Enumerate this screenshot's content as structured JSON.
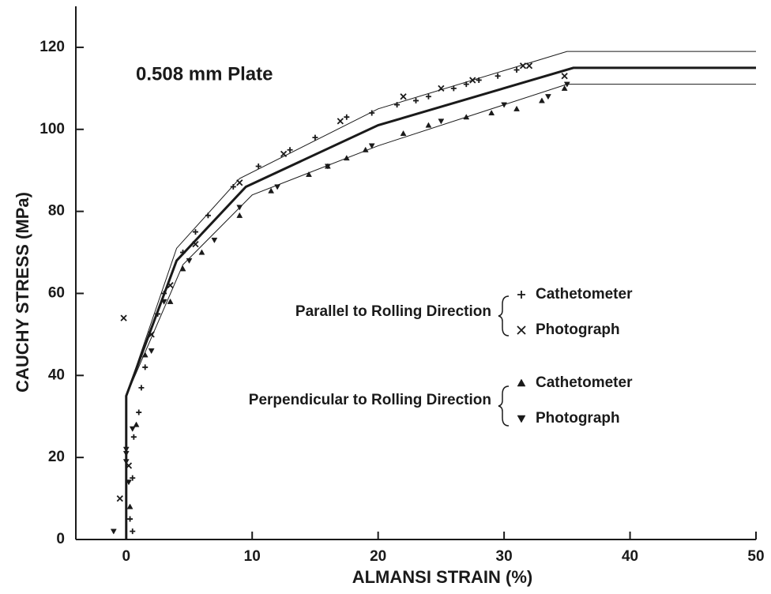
{
  "chart_data": {
    "type": "scatter",
    "title": "0.508 mm Plate",
    "xlabel": "ALMANSI STRAIN (%)",
    "ylabel": "CAUCHY STRESS (MPa)",
    "xlim": [
      -4,
      50
    ],
    "ylim": [
      0,
      130
    ],
    "xticks": [
      0,
      10,
      20,
      30,
      40,
      50
    ],
    "yticks": [
      0,
      20,
      40,
      60,
      80,
      100,
      120
    ],
    "color": "#1a1a1a",
    "lines": [
      {
        "line_width": 3,
        "x": [
          0,
          0,
          4,
          9.5,
          20,
          35.5,
          50
        ],
        "values": [
          0,
          35,
          68,
          86,
          101,
          115,
          115
        ]
      },
      {
        "line_width": 1,
        "x": [
          0,
          4,
          9,
          20,
          35,
          50
        ],
        "values": [
          35,
          71,
          88,
          105,
          119,
          119
        ]
      },
      {
        "line_width": 1,
        "x": [
          0,
          4.5,
          10,
          20,
          35,
          50
        ],
        "values": [
          35,
          67,
          84,
          96,
          111,
          111
        ]
      }
    ],
    "legend_groups": [
      "Parallel to Rolling Direction",
      "Perpendicular to Rolling Direction"
    ],
    "series": [
      {
        "name": "Cathetometer",
        "group": 0,
        "marker": "plus",
        "x": [
          0.5,
          0.3,
          0.5,
          0.6,
          1,
          1.2,
          1.5,
          2.5,
          3,
          4.5,
          5.5,
          6.5,
          8.5,
          10.5,
          13,
          15,
          17.5,
          19.5,
          21.5,
          23,
          24,
          26,
          27,
          28,
          29.5,
          31
        ],
        "values": [
          2,
          5,
          15,
          25,
          31,
          37,
          42,
          55,
          60,
          70,
          75,
          79,
          86,
          91,
          95,
          98,
          103,
          104,
          106,
          107,
          108,
          110,
          111,
          112,
          113,
          114.5
        ]
      },
      {
        "name": "Photograph",
        "group": 0,
        "marker": "cross",
        "x": [
          -0.5,
          0.2,
          2,
          3.5,
          5.5,
          9,
          12.5,
          17,
          22,
          25,
          27.5,
          31.5,
          32,
          34.8,
          -0.2
        ],
        "values": [
          10,
          18,
          50,
          62,
          72,
          87,
          94,
          102,
          108,
          110,
          112,
          115.5,
          115.5,
          113,
          54
        ]
      },
      {
        "name": "Cathetometer",
        "group": 1,
        "marker": "triangle-up",
        "x": [
          0.3,
          0.8,
          1.5,
          3.5,
          4.5,
          6,
          9,
          11.5,
          14.5,
          16,
          17.5,
          19,
          22,
          24,
          27,
          29,
          31,
          33,
          34.8
        ],
        "values": [
          8,
          28,
          45,
          58,
          66,
          70,
          79,
          85,
          89,
          91,
          93,
          95,
          99,
          101,
          103,
          104,
          105,
          107,
          110
        ]
      },
      {
        "name": "Photograph",
        "group": 1,
        "marker": "triangle-down",
        "x": [
          -1,
          0,
          0,
          0,
          0.2,
          0.5,
          2,
          3,
          5,
          7,
          9,
          12,
          16,
          19.5,
          25,
          30,
          33.5,
          35
        ],
        "values": [
          2,
          22,
          21,
          19,
          14,
          27,
          46,
          58,
          68,
          73,
          81,
          86,
          91,
          96,
          102,
          106,
          108,
          111
        ]
      }
    ]
  }
}
